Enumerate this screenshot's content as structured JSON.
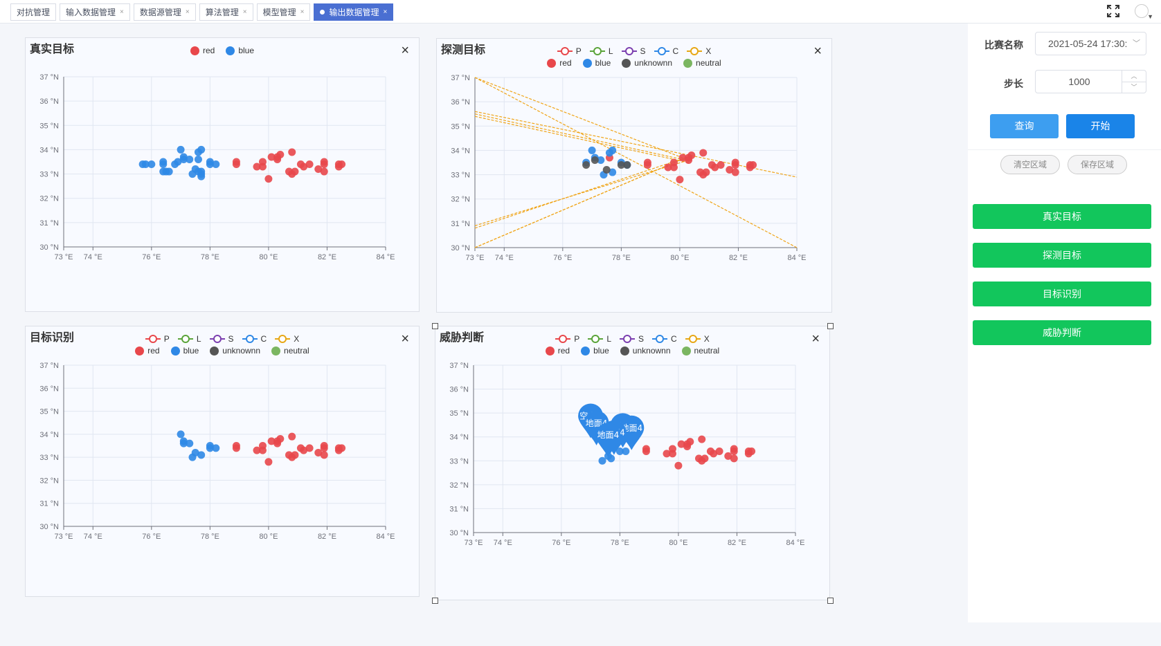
{
  "tabs": [
    {
      "label": "对抗管理",
      "closable": false,
      "active": false
    },
    {
      "label": "输入数据管理",
      "closable": true,
      "active": false
    },
    {
      "label": "数据源管理",
      "closable": true,
      "active": false
    },
    {
      "label": "算法管理",
      "closable": true,
      "active": false
    },
    {
      "label": "模型管理",
      "closable": true,
      "active": false
    },
    {
      "label": "输出数据管理",
      "closable": true,
      "active": true
    }
  ],
  "icons": {
    "fullscreen": "fullscreen-icon",
    "avatar": "user-avatar",
    "close": "close-icon"
  },
  "sidebar": {
    "match_label": "比赛名称",
    "match_value": "2021-05-24 17:30:",
    "step_label": "步长",
    "step_value": "1000",
    "query_label": "查询",
    "start_label": "开始",
    "clear_label": "清空区域",
    "save_label": "保存区域",
    "nav": [
      "真实目标",
      "探测目标",
      "目标识别",
      "威胁判断"
    ]
  },
  "colors": {
    "red": "#e8474b",
    "blue": "#2f88e6",
    "unknown": "#555555",
    "neutral": "#7bb661",
    "P": "#e8474b",
    "L": "#5aa43a",
    "S": "#7b3fb0",
    "C": "#2f88e6",
    "X": "#e7a715",
    "line": "#f0a416",
    "green_button": "#12c65c",
    "query": "#3d9ef0",
    "start": "#1a84e8"
  },
  "panels": [
    {
      "title": "真实目标"
    },
    {
      "title": "探测目标"
    },
    {
      "title": "目标识别"
    },
    {
      "title": "威胁判断"
    }
  ],
  "chart_data": [
    {
      "type": "scatter",
      "title": "真实目标",
      "legend": [
        "red",
        "blue"
      ],
      "xticks": [
        "73 °E",
        "74 °E",
        "76 °E",
        "78 °E",
        "80 °E",
        "82 °E",
        "84 °E"
      ],
      "yticks": [
        "30 °N",
        "31 °N",
        "32 °N",
        "33 °N",
        "34 °N",
        "35 °N",
        "36 °N",
        "37 °N"
      ],
      "xlim": [
        73,
        84
      ],
      "ylim": [
        30,
        37
      ],
      "series": [
        {
          "name": "red",
          "points": [
            [
              78.9,
              33.5
            ],
            [
              78.9,
              33.4
            ],
            [
              79.6,
              33.3
            ],
            [
              79.8,
              33.5
            ],
            [
              79.8,
              33.3
            ],
            [
              80.0,
              32.8
            ],
            [
              80.1,
              33.7
            ],
            [
              80.3,
              33.7
            ],
            [
              80.3,
              33.6
            ],
            [
              80.4,
              33.8
            ],
            [
              80.7,
              33.1
            ],
            [
              80.8,
              33.0
            ],
            [
              80.9,
              33.1
            ],
            [
              80.8,
              33.9
            ],
            [
              81.1,
              33.4
            ],
            [
              81.2,
              33.3
            ],
            [
              81.4,
              33.4
            ],
            [
              81.7,
              33.2
            ],
            [
              81.9,
              33.1
            ],
            [
              81.9,
              33.5
            ],
            [
              81.9,
              33.4
            ],
            [
              82.4,
              33.3
            ],
            [
              82.4,
              33.4
            ],
            [
              82.5,
              33.4
            ]
          ]
        },
        {
          "name": "blue",
          "points": [
            [
              75.7,
              33.4
            ],
            [
              75.8,
              33.4
            ],
            [
              76.0,
              33.4
            ],
            [
              76.4,
              33.4
            ],
            [
              76.4,
              33.5
            ],
            [
              76.5,
              33.1
            ],
            [
              76.4,
              33.1
            ],
            [
              76.6,
              33.1
            ],
            [
              76.8,
              33.4
            ],
            [
              76.9,
              33.5
            ],
            [
              77.0,
              34.0
            ],
            [
              77.1,
              33.6
            ],
            [
              77.1,
              33.7
            ],
            [
              77.3,
              33.6
            ],
            [
              77.4,
              33.0
            ],
            [
              77.5,
              33.2
            ],
            [
              77.6,
              33.1
            ],
            [
              77.6,
              33.6
            ],
            [
              77.6,
              33.9
            ],
            [
              77.7,
              34.0
            ],
            [
              77.7,
              33.0
            ],
            [
              77.7,
              33.1
            ],
            [
              77.7,
              32.9
            ],
            [
              78.0,
              33.5
            ],
            [
              78.0,
              33.4
            ],
            [
              78.2,
              33.4
            ]
          ]
        }
      ]
    },
    {
      "type": "scatter",
      "title": "探测目标",
      "legend_lines": [
        "P",
        "L",
        "S",
        "C",
        "X"
      ],
      "legend": [
        "red",
        "blue",
        "unknownn",
        "neutral"
      ],
      "xticks": [
        "73 °E",
        "74 °E",
        "76 °E",
        "78 °E",
        "80 °E",
        "82 °E",
        "84 °E"
      ],
      "yticks": [
        "30 °N",
        "31 °N",
        "32 °N",
        "33 °N",
        "34 °N",
        "35 °N",
        "36 °N",
        "37 °N"
      ],
      "xlim": [
        73,
        84
      ],
      "ylim": [
        30,
        37
      ],
      "series": [
        {
          "name": "red",
          "points": [
            [
              77.6,
              33.7
            ],
            [
              78.9,
              33.5
            ],
            [
              78.9,
              33.4
            ],
            [
              79.6,
              33.3
            ],
            [
              79.8,
              33.5
            ],
            [
              79.8,
              33.3
            ],
            [
              80.0,
              32.8
            ],
            [
              80.1,
              33.7
            ],
            [
              80.3,
              33.7
            ],
            [
              80.3,
              33.6
            ],
            [
              80.4,
              33.8
            ],
            [
              80.7,
              33.1
            ],
            [
              80.8,
              33.0
            ],
            [
              80.9,
              33.1
            ],
            [
              80.8,
              33.9
            ],
            [
              81.1,
              33.4
            ],
            [
              81.2,
              33.3
            ],
            [
              81.4,
              33.4
            ],
            [
              81.7,
              33.2
            ],
            [
              81.9,
              33.1
            ],
            [
              81.9,
              33.5
            ],
            [
              81.9,
              33.4
            ],
            [
              82.4,
              33.3
            ],
            [
              82.4,
              33.4
            ],
            [
              82.5,
              33.4
            ]
          ]
        },
        {
          "name": "blue",
          "points": [
            [
              77.0,
              34.0
            ],
            [
              77.1,
              33.7
            ],
            [
              77.3,
              33.6
            ],
            [
              77.4,
              33.0
            ],
            [
              77.6,
              33.9
            ],
            [
              77.7,
              34.0
            ],
            [
              77.7,
              33.1
            ],
            [
              78.0,
              33.5
            ],
            [
              78.2,
              33.4
            ],
            [
              76.8,
              33.5
            ]
          ]
        },
        {
          "name": "unknownn",
          "points": [
            [
              76.8,
              33.4
            ],
            [
              77.1,
              33.6
            ],
            [
              77.5,
              33.2
            ],
            [
              78.0,
              33.4
            ],
            [
              78.2,
              33.4
            ]
          ]
        },
        {
          "name": "neutral",
          "points": []
        }
      ],
      "lines": [
        [
          [
            73.0,
            37.0
          ],
          [
            84.0,
            30.0
          ]
        ],
        [
          [
            73.0,
            37.0
          ],
          [
            80.3,
            33.6
          ]
        ],
        [
          [
            73.0,
            35.6
          ],
          [
            84.0,
            32.9
          ]
        ],
        [
          [
            73.0,
            35.5
          ],
          [
            80.2,
            33.6
          ]
        ],
        [
          [
            73.0,
            35.4
          ],
          [
            80.3,
            33.5
          ]
        ],
        [
          [
            73.0,
            30.0
          ],
          [
            80.4,
            33.8
          ]
        ],
        [
          [
            73.0,
            30.0
          ],
          [
            80.0,
            33.6
          ]
        ],
        [
          [
            73.0,
            30.9
          ],
          [
            80.3,
            33.6
          ]
        ],
        [
          [
            73.0,
            30.8
          ],
          [
            80.2,
            33.7
          ]
        ]
      ]
    },
    {
      "type": "scatter",
      "title": "目标识别",
      "legend_lines": [
        "P",
        "L",
        "S",
        "C",
        "X"
      ],
      "legend": [
        "red",
        "blue",
        "unknownn",
        "neutral"
      ],
      "xticks": [
        "73 °E",
        "74 °E",
        "76 °E",
        "78 °E",
        "80 °E",
        "82 °E",
        "84 °E"
      ],
      "yticks": [
        "30 °N",
        "31 °N",
        "32 °N",
        "33 °N",
        "34 °N",
        "35 °N",
        "36 °N",
        "37 °N"
      ],
      "xlim": [
        73,
        84
      ],
      "ylim": [
        30,
        37
      ],
      "series": [
        {
          "name": "red",
          "points": [
            [
              78.9,
              33.5
            ],
            [
              78.9,
              33.4
            ],
            [
              79.6,
              33.3
            ],
            [
              79.8,
              33.5
            ],
            [
              79.8,
              33.3
            ],
            [
              80.0,
              32.8
            ],
            [
              80.1,
              33.7
            ],
            [
              80.3,
              33.7
            ],
            [
              80.3,
              33.6
            ],
            [
              80.4,
              33.8
            ],
            [
              80.7,
              33.1
            ],
            [
              80.8,
              33.0
            ],
            [
              80.9,
              33.1
            ],
            [
              80.8,
              33.9
            ],
            [
              81.1,
              33.4
            ],
            [
              81.2,
              33.3
            ],
            [
              81.4,
              33.4
            ],
            [
              81.7,
              33.2
            ],
            [
              81.9,
              33.1
            ],
            [
              81.9,
              33.5
            ],
            [
              81.9,
              33.4
            ],
            [
              82.4,
              33.3
            ],
            [
              82.4,
              33.4
            ],
            [
              82.5,
              33.4
            ]
          ]
        },
        {
          "name": "blue",
          "points": [
            [
              77.0,
              34.0
            ],
            [
              77.1,
              33.7
            ],
            [
              77.1,
              33.6
            ],
            [
              77.3,
              33.6
            ],
            [
              77.4,
              33.0
            ],
            [
              77.5,
              33.2
            ],
            [
              77.7,
              33.1
            ],
            [
              78.0,
              33.5
            ],
            [
              78.0,
              33.4
            ],
            [
              78.2,
              33.4
            ]
          ]
        },
        {
          "name": "unknownn",
          "points": []
        },
        {
          "name": "neutral",
          "points": []
        }
      ]
    },
    {
      "type": "scatter",
      "title": "威胁判断",
      "legend_lines": [
        "P",
        "L",
        "S",
        "C",
        "X"
      ],
      "legend": [
        "red",
        "blue",
        "unknownn",
        "neutral"
      ],
      "xticks": [
        "73 °E",
        "74 °E",
        "76 °E",
        "78 °E",
        "80 °E",
        "82 °E",
        "84 °E"
      ],
      "yticks": [
        "30 °N",
        "31 °N",
        "32 °N",
        "33 °N",
        "34 °N",
        "35 °N",
        "36 °N",
        "37 °N"
      ],
      "xlim": [
        73,
        84
      ],
      "ylim": [
        30,
        37
      ],
      "series": [
        {
          "name": "red",
          "points": [
            [
              78.9,
              33.5
            ],
            [
              78.9,
              33.4
            ],
            [
              79.6,
              33.3
            ],
            [
              79.8,
              33.5
            ],
            [
              79.8,
              33.3
            ],
            [
              80.0,
              32.8
            ],
            [
              80.1,
              33.7
            ],
            [
              80.3,
              33.7
            ],
            [
              80.3,
              33.6
            ],
            [
              80.4,
              33.8
            ],
            [
              80.7,
              33.1
            ],
            [
              80.8,
              33.0
            ],
            [
              80.9,
              33.1
            ],
            [
              80.8,
              33.9
            ],
            [
              81.1,
              33.4
            ],
            [
              81.2,
              33.3
            ],
            [
              81.4,
              33.4
            ],
            [
              81.7,
              33.2
            ],
            [
              81.9,
              33.1
            ],
            [
              81.9,
              33.5
            ],
            [
              81.9,
              33.4
            ],
            [
              82.4,
              33.3
            ],
            [
              82.4,
              33.4
            ],
            [
              82.5,
              33.4
            ]
          ]
        },
        {
          "name": "blue",
          "points": [
            [
              77.4,
              33.0
            ],
            [
              77.6,
              33.2
            ],
            [
              77.7,
              33.1
            ],
            [
              78.0,
              33.4
            ],
            [
              78.2,
              33.4
            ]
          ]
        },
        {
          "name": "unknownn",
          "points": []
        },
        {
          "name": "neutral",
          "points": []
        }
      ],
      "pins": [
        {
          "label": "空中4",
          "x": 77.0,
          "y": 34.7
        },
        {
          "label": "地面4",
          "x": 77.2,
          "y": 34.4
        },
        {
          "label": "地面4",
          "x": 78.1,
          "y": 34.3
        },
        {
          "label": "地面4",
          "x": 78.4,
          "y": 34.2
        },
        {
          "label": "地面4",
          "x": 77.8,
          "y": 34.0
        },
        {
          "label": "地面4",
          "x": 77.6,
          "y": 33.9
        }
      ]
    }
  ]
}
